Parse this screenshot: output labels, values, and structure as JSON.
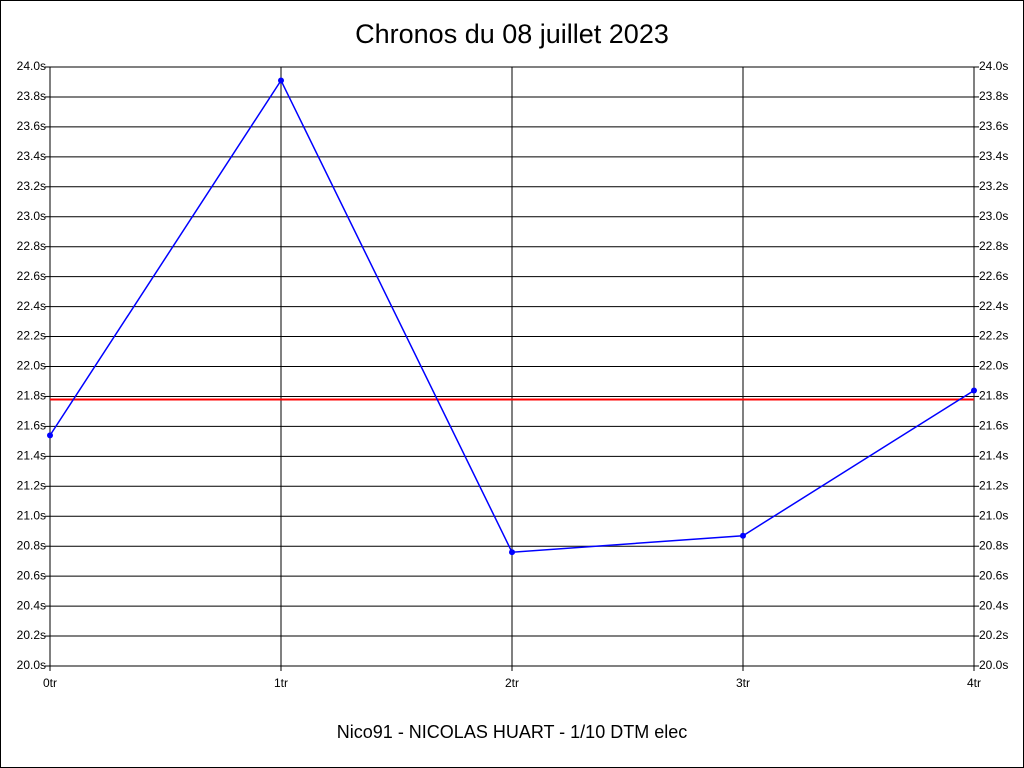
{
  "chart_data": {
    "type": "line",
    "title": "Chronos du 08 juillet 2023",
    "xlabel": "Nico91 - NICOLAS HUART - 1/10 DTM elec",
    "x": [
      0,
      1,
      2,
      3,
      4
    ],
    "xlim": [
      0,
      4
    ],
    "xticks": [
      {
        "value": 0,
        "label": "0tr"
      },
      {
        "value": 1,
        "label": "1tr"
      },
      {
        "value": 2,
        "label": "2tr"
      },
      {
        "value": 3,
        "label": "3tr"
      },
      {
        "value": 4,
        "label": "4tr"
      }
    ],
    "series": [
      {
        "color": "#0000ff",
        "values": [
          21.54,
          23.91,
          20.76,
          20.87,
          21.84
        ]
      }
    ],
    "reference_line": {
      "value": 21.78,
      "color": "#ff0000"
    },
    "ylim": [
      20,
      24
    ],
    "yticks": [
      {
        "value": 20,
        "label": "20.0s"
      },
      {
        "value": 20.2,
        "label": "20.2s"
      },
      {
        "value": 20.4,
        "label": "20.4s"
      },
      {
        "value": 20.6,
        "label": "20.6s"
      },
      {
        "value": 20.8,
        "label": "20.8s"
      },
      {
        "value": 21,
        "label": "21.0s"
      },
      {
        "value": 21.2,
        "label": "21.2s"
      },
      {
        "value": 21.4,
        "label": "21.4s"
      },
      {
        "value": 21.6,
        "label": "21.6s"
      },
      {
        "value": 21.8,
        "label": "21.8s"
      },
      {
        "value": 22,
        "label": "22.0s"
      },
      {
        "value": 22.2,
        "label": "22.2s"
      },
      {
        "value": 22.4,
        "label": "22.4s"
      },
      {
        "value": 22.6,
        "label": "22.6s"
      },
      {
        "value": 22.8,
        "label": "22.8s"
      },
      {
        "value": 23,
        "label": "23.0s"
      },
      {
        "value": 23.2,
        "label": "23.2s"
      },
      {
        "value": 23.4,
        "label": "23.4s"
      },
      {
        "value": 23.6,
        "label": "23.6s"
      },
      {
        "value": 23.8,
        "label": "23.8s"
      },
      {
        "value": 24,
        "label": "24.0s"
      }
    ],
    "grid": true
  }
}
